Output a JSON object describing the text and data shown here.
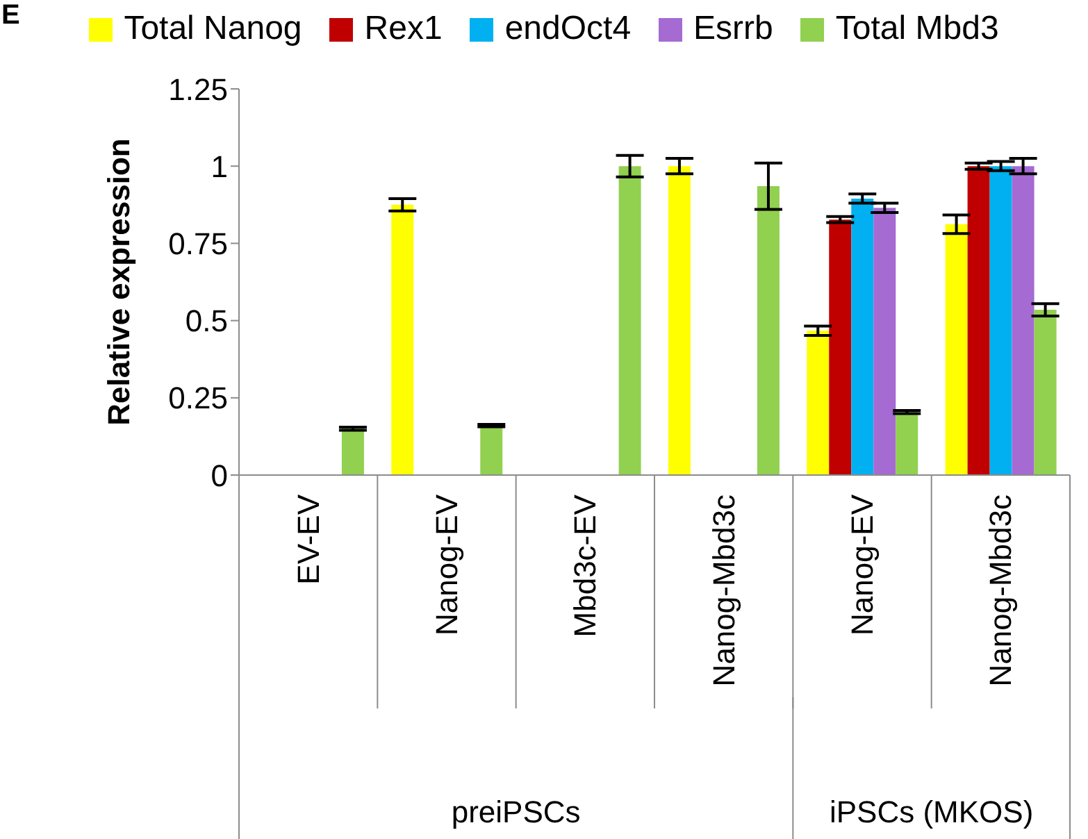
{
  "chart_data": {
    "type": "bar",
    "ylabel": "Relative expression",
    "categories": [
      "EV-EV",
      "Nanog-EV",
      "Mbd3c-EV",
      "Nanog-Mbd3c",
      "Nanog-EV",
      "Nanog-Mbd3c"
    ],
    "series": [
      {
        "name": "Total Nanog",
        "color": "#ffff00",
        "values": [
          null,
          0.875,
          null,
          1.0,
          0.467,
          0.812
        ],
        "errors": [
          null,
          0.02,
          null,
          0.025,
          0.015,
          0.03
        ]
      },
      {
        "name": "Rex1",
        "color": "#c00000",
        "values": [
          null,
          null,
          null,
          null,
          0.827,
          1.0
        ],
        "errors": [
          null,
          null,
          null,
          null,
          0.01,
          0.01
        ]
      },
      {
        "name": "endOct4",
        "color": "#00b0f0",
        "values": [
          null,
          null,
          null,
          null,
          0.895,
          1.0
        ],
        "errors": [
          null,
          null,
          null,
          null,
          0.015,
          0.015
        ]
      },
      {
        "name": "Esrrb",
        "color": "#a66ad3",
        "values": [
          null,
          null,
          null,
          null,
          0.865,
          1.0
        ],
        "errors": [
          null,
          null,
          null,
          null,
          0.015,
          0.025
        ]
      },
      {
        "name": "Total Mbd3",
        "color": "#92d050",
        "values": [
          0.15,
          0.16,
          1.0,
          0.935,
          0.204,
          0.535
        ],
        "errors": [
          0.005,
          0.004,
          0.035,
          0.075,
          0.005,
          0.02
        ]
      }
    ],
    "ylim": [
      0,
      1.25
    ],
    "yticks": [
      0,
      0.25,
      0.5,
      0.75,
      1,
      1.25
    ],
    "grid": false,
    "legend": "top",
    "annotations": [
      "E",
      "preiPSCs",
      "iPSCs (MKOS)"
    ]
  }
}
